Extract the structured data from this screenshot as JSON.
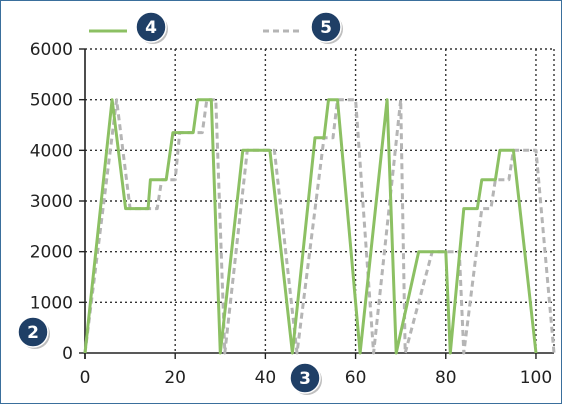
{
  "chart_data": {
    "type": "line",
    "title": "",
    "xlabel": "",
    "ylabel": "",
    "xlim": [
      0,
      104
    ],
    "ylim": [
      0,
      6000
    ],
    "x_ticks": [
      "0",
      "20",
      "40",
      "60",
      "80",
      "100"
    ],
    "y_ticks": [
      "0",
      "1000",
      "2000",
      "3000",
      "4000",
      "5000",
      "6000"
    ],
    "grid": true,
    "legend_position": "top-left",
    "series": [
      {
        "color": "#8cc063",
        "style": "solid",
        "points": [
          [
            0,
            0
          ],
          [
            6,
            5000
          ],
          [
            9,
            2850
          ],
          [
            14,
            2850
          ],
          [
            14.5,
            3420
          ],
          [
            18,
            3420
          ],
          [
            19.5,
            4350
          ],
          [
            24,
            4350
          ],
          [
            25,
            5000
          ],
          [
            28,
            5000
          ],
          [
            30,
            0
          ],
          [
            35,
            4000
          ],
          [
            41,
            4000
          ],
          [
            46,
            0
          ],
          [
            51,
            4250
          ],
          [
            53,
            4250
          ],
          [
            54,
            5000
          ],
          [
            56,
            5000
          ],
          [
            61,
            0
          ],
          [
            67,
            5000
          ],
          [
            69,
            0
          ],
          [
            74,
            2000
          ],
          [
            80,
            2000
          ],
          [
            81,
            0
          ],
          [
            84,
            2850
          ],
          [
            87,
            2850
          ],
          [
            88,
            3420
          ],
          [
            91,
            3420
          ],
          [
            92,
            4000
          ],
          [
            95,
            4000
          ],
          [
            100,
            0
          ]
        ]
      },
      {
        "color": "#b5b5b5",
        "style": "dashed",
        "points": [
          [
            0,
            0
          ],
          [
            7,
            5000
          ],
          [
            10,
            2850
          ],
          [
            16,
            2850
          ],
          [
            17,
            3420
          ],
          [
            20,
            3420
          ],
          [
            21,
            4350
          ],
          [
            26,
            4350
          ],
          [
            27,
            5000
          ],
          [
            29,
            5000
          ],
          [
            31,
            0
          ],
          [
            36,
            4000
          ],
          [
            42,
            4000
          ],
          [
            47,
            0
          ],
          [
            53,
            4250
          ],
          [
            55,
            4250
          ],
          [
            56,
            5000
          ],
          [
            60,
            5000
          ],
          [
            64,
            0
          ],
          [
            70,
            5000
          ],
          [
            71,
            0
          ],
          [
            77,
            2000
          ],
          [
            83,
            2000
          ],
          [
            84,
            0
          ],
          [
            88,
            2850
          ],
          [
            90,
            2850
          ],
          [
            91,
            3420
          ],
          [
            94,
            3420
          ],
          [
            95,
            4000
          ],
          [
            100,
            4000
          ],
          [
            104,
            0
          ]
        ]
      }
    ],
    "badges": [
      "2",
      "3",
      "4",
      "5"
    ]
  }
}
